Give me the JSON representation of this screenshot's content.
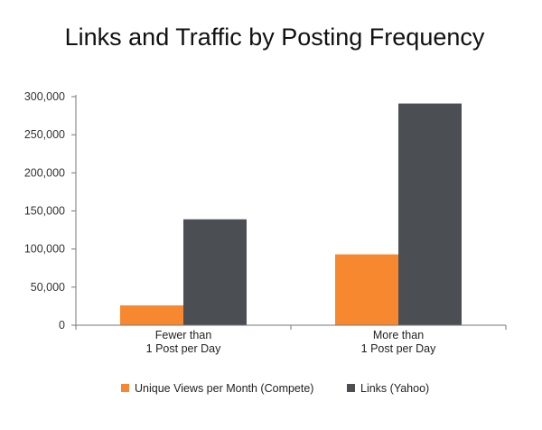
{
  "chart_data": {
    "type": "bar",
    "title": "Links and Traffic by Posting Frequency",
    "xlabel": "",
    "ylabel": "",
    "categories": [
      [
        "Fewer than",
        "1 Post per Day"
      ],
      [
        "More than",
        "1 Post per Day"
      ]
    ],
    "series": [
      {
        "name": "Unique Views per Month (Compete)",
        "color": "#F7882F",
        "values": [
          26000,
          93000
        ]
      },
      {
        "name": "Links (Yahoo)",
        "color": "#4B4F54",
        "values": [
          139000,
          291000
        ]
      }
    ],
    "ylim": [
      0,
      300000
    ],
    "yticks": [
      0,
      50000,
      100000,
      150000,
      200000,
      250000,
      300000
    ],
    "ytick_labels": [
      "0",
      "50,000",
      "100,000",
      "150,000",
      "200,000",
      "250,000",
      "300,000"
    ],
    "grid": false,
    "legend_position": "bottom"
  }
}
